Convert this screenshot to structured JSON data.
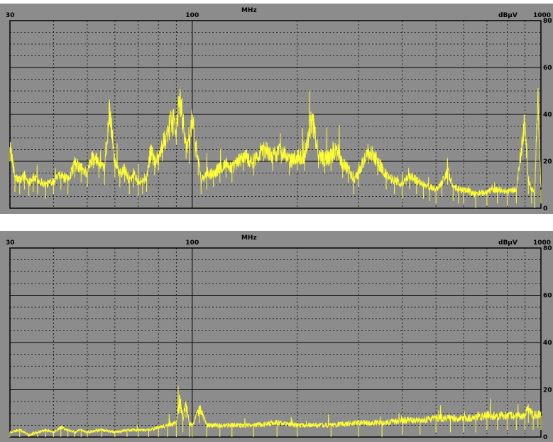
{
  "chart_data": [
    {
      "type": "line",
      "title": "",
      "xlabel": "MHz",
      "ylabel": "dBµV",
      "x_scale": "log",
      "xlim": [
        30,
        1000
      ],
      "ylim": [
        0,
        80
      ],
      "x_ticks": [
        "30",
        "100",
        "1000"
      ],
      "x_tick_values": [
        30,
        100,
        1000
      ],
      "y_ticks": [
        "80",
        "60",
        "40",
        "20",
        "0"
      ],
      "y_tick_values": [
        80,
        60,
        40,
        20,
        0
      ],
      "grid": true,
      "series": [
        {
          "color": "#ffff33",
          "x": [
            30,
            31,
            32,
            33,
            34,
            35,
            36,
            38,
            40,
            42,
            44,
            46,
            48,
            50,
            52,
            54,
            56,
            58,
            60,
            62,
            64,
            66,
            68,
            70,
            72,
            74,
            76,
            78,
            80,
            82,
            84,
            86,
            88,
            90,
            92,
            94,
            96,
            98,
            100,
            102,
            104,
            106,
            110,
            115,
            120,
            125,
            130,
            140,
            150,
            160,
            170,
            180,
            190,
            200,
            210,
            220,
            230,
            240,
            250,
            260,
            270,
            280,
            290,
            300,
            320,
            340,
            360,
            380,
            400,
            420,
            440,
            460,
            480,
            500,
            520,
            540,
            560,
            580,
            600,
            650,
            700,
            750,
            800,
            850,
            900,
            920,
            940,
            960,
            980,
            1000
          ],
          "y": [
            26,
            13,
            12,
            14,
            11,
            13,
            12,
            10,
            12,
            14,
            12,
            19,
            17,
            15,
            23,
            19,
            16,
            42,
            19,
            15,
            17,
            12,
            15,
            11,
            12,
            13,
            25,
            20,
            22,
            26,
            31,
            35,
            37,
            33,
            46,
            38,
            27,
            25,
            40,
            28,
            20,
            12,
            14,
            15,
            17,
            19,
            17,
            22,
            20,
            26,
            22,
            25,
            20,
            22,
            22,
            38,
            23,
            21,
            22,
            26,
            19,
            17,
            12,
            15,
            25,
            20,
            14,
            12,
            10,
            14,
            12,
            10,
            9,
            8,
            11,
            16,
            9,
            8,
            8,
            6,
            7,
            8,
            7,
            8,
            37,
            12,
            8,
            6,
            50,
            8
          ]
        }
      ]
    },
    {
      "type": "line",
      "title": "",
      "xlabel": "MHz",
      "ylabel": "dBµV",
      "x_scale": "log",
      "xlim": [
        30,
        1000
      ],
      "ylim": [
        0,
        80
      ],
      "x_ticks": [
        "30",
        "100",
        "1000"
      ],
      "x_tick_values": [
        30,
        100,
        1000
      ],
      "y_ticks": [
        "80",
        "60",
        "40",
        "20",
        "0"
      ],
      "y_tick_values": [
        80,
        60,
        40,
        20,
        0
      ],
      "grid": true,
      "series": [
        {
          "color": "#ffff33",
          "x": [
            30,
            32,
            34,
            36,
            38,
            40,
            42,
            44,
            46,
            48,
            50,
            55,
            60,
            65,
            70,
            75,
            80,
            85,
            90,
            92,
            94,
            96,
            98,
            100,
            105,
            110,
            120,
            130,
            150,
            175,
            200,
            250,
            300,
            350,
            400,
            450,
            500,
            550,
            600,
            650,
            700,
            750,
            800,
            850,
            900,
            920,
            950,
            980,
            1000
          ],
          "y": [
            2,
            3,
            1,
            2,
            3,
            2,
            4,
            3,
            2,
            3,
            2,
            3,
            2,
            3,
            3,
            3,
            4,
            5,
            6,
            16,
            8,
            14,
            6,
            5,
            12,
            5,
            5,
            5,
            5,
            6,
            5,
            5,
            6,
            6,
            7,
            7,
            8,
            8,
            8,
            8,
            9,
            9,
            9,
            9,
            9,
            12,
            9,
            10,
            9
          ]
        }
      ]
    }
  ]
}
